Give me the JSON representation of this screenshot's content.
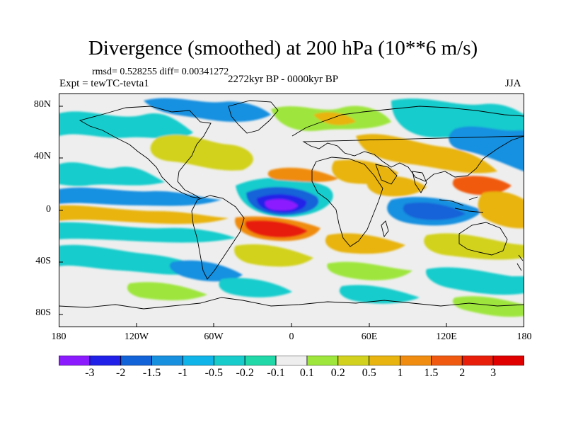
{
  "title": "Divergence (smoothed) at 200 hPa (10**6 m/s)",
  "stats": "rmsd= 0.528255 diff= 0.00341272",
  "experiment": "Expt = tewTC-tevta1",
  "period": "2272kyr BP - 0000kyr BP",
  "season": "JJA",
  "y_axis": {
    "labels": [
      "80N",
      "40N",
      "0",
      "40S",
      "80S"
    ],
    "values": [
      80,
      40,
      0,
      -40,
      -80
    ]
  },
  "x_axis": {
    "labels": [
      "180",
      "120W",
      "60W",
      "0",
      "60E",
      "120E",
      "180"
    ],
    "values": [
      -180,
      -120,
      -60,
      0,
      60,
      120,
      180
    ]
  },
  "colorbar": {
    "levels": [
      "-3",
      "-2",
      "-1.5",
      "-1",
      "-0.5",
      "-0.2",
      "-0.1",
      "0.1",
      "0.2",
      "0.5",
      "1",
      "1.5",
      "2",
      "3"
    ],
    "colors": [
      "#8c1aff",
      "#2020e8",
      "#1262d8",
      "#1890e0",
      "#10b4e8",
      "#18cccc",
      "#20d8a8",
      "#eeeeee",
      "#9ee63c",
      "#d2d21e",
      "#e8b410",
      "#f08c10",
      "#f05a10",
      "#e81e0a",
      "#e00000"
    ]
  },
  "ocean_color": "#eeeeee"
}
